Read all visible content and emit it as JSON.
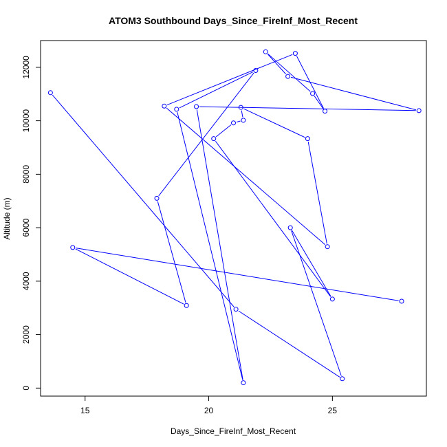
{
  "chart_data": {
    "type": "line",
    "markers": "open-circle",
    "title": "ATOM3 Southbound Days_Since_FireInf_Most_Recent",
    "xlabel": "Days_Since_FireInf_Most_Recent",
    "ylabel": "Altitude (m)",
    "xlim": [
      13.2,
      28.8
    ],
    "ylim": [
      -300,
      13000
    ],
    "xticks": [
      15,
      20,
      25
    ],
    "yticks": [
      0,
      2000,
      4000,
      6000,
      8000,
      10000,
      12000
    ],
    "xtick_labels": [
      "15",
      "20",
      "25"
    ],
    "ytick_labels": [
      "0",
      "2000",
      "4000",
      "6000",
      "8000",
      "10000",
      "12000"
    ],
    "grid": false,
    "color": "#0000ff",
    "points": [
      {
        "x": 13.6,
        "y": 11050
      },
      {
        "x": 21.1,
        "y": 2950
      },
      {
        "x": 25.4,
        "y": 350
      },
      {
        "x": 23.3,
        "y": 6000
      },
      {
        "x": 25.0,
        "y": 3330
      },
      {
        "x": 20.2,
        "y": 9330
      },
      {
        "x": 21.0,
        "y": 9920
      },
      {
        "x": 21.4,
        "y": 10020
      },
      {
        "x": 21.3,
        "y": 10500
      },
      {
        "x": 24.0,
        "y": 9330
      },
      {
        "x": 24.8,
        "y": 5290
      },
      {
        "x": 18.2,
        "y": 10550
      },
      {
        "x": 23.5,
        "y": 12520
      },
      {
        "x": 24.7,
        "y": 10360
      },
      {
        "x": 24.2,
        "y": 11020
      },
      {
        "x": 22.3,
        "y": 12580
      },
      {
        "x": 23.2,
        "y": 11660
      },
      {
        "x": 28.5,
        "y": 10380
      },
      {
        "x": 19.5,
        "y": 10530
      },
      {
        "x": 21.4,
        "y": 200
      },
      {
        "x": 18.7,
        "y": 10430
      },
      {
        "x": 21.9,
        "y": 11880
      },
      {
        "x": 17.9,
        "y": 7100
      },
      {
        "x": 19.1,
        "y": 3090
      },
      {
        "x": 14.5,
        "y": 5260
      },
      {
        "x": 27.8,
        "y": 3250
      }
    ]
  }
}
